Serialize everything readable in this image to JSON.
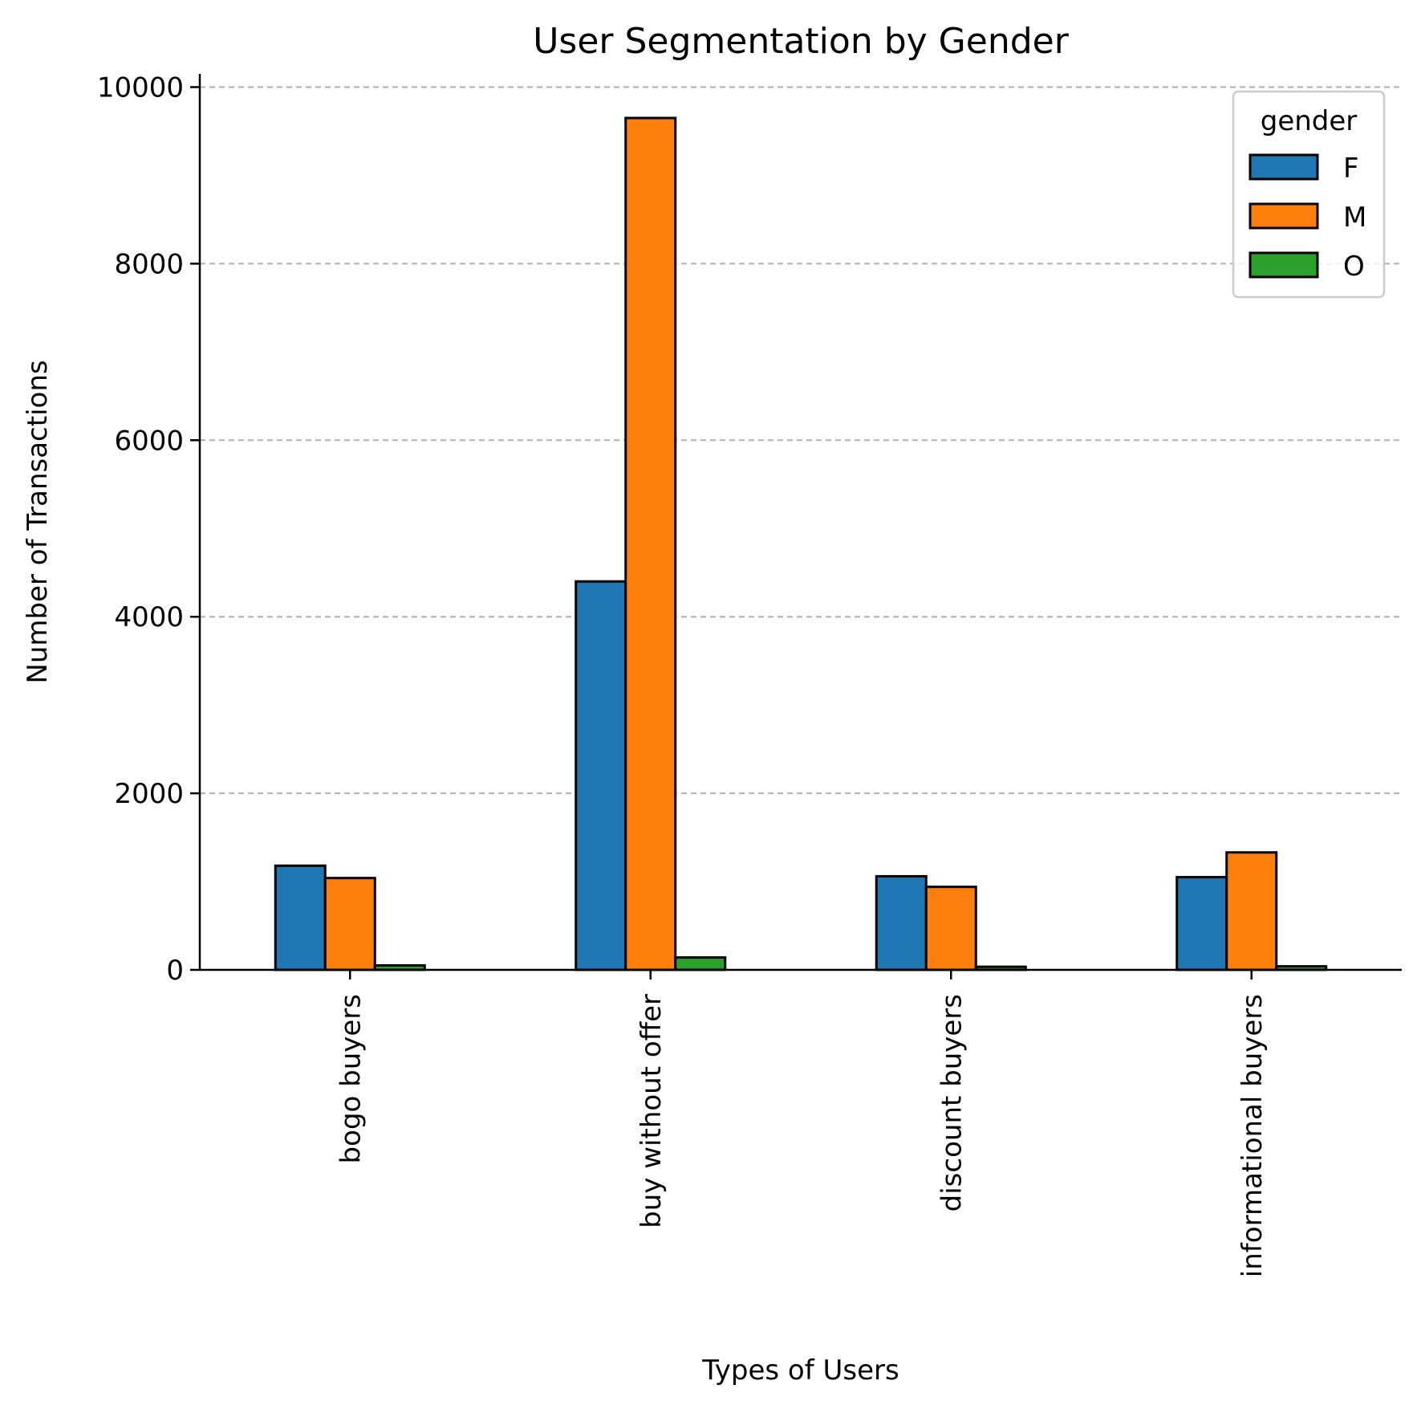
{
  "chart_data": {
    "type": "bar",
    "title": "User Segmentation by Gender",
    "xlabel": "Types of Users",
    "ylabel": "Number of Transactions",
    "categories": [
      "bogo buyers",
      "buy without offer",
      "discount buyers",
      "informational buyers"
    ],
    "series": [
      {
        "name": "F",
        "color": "#1f77b4",
        "values": [
          1180,
          4400,
          1060,
          1050
        ]
      },
      {
        "name": "M",
        "color": "#ff7f0e",
        "values": [
          1040,
          9650,
          940,
          1330
        ]
      },
      {
        "name": "O",
        "color": "#2ca02c",
        "values": [
          50,
          140,
          35,
          40
        ]
      }
    ],
    "ylim": [
      0,
      10150
    ],
    "yticks": [
      0,
      2000,
      4000,
      6000,
      8000,
      10000
    ],
    "grid": "y-dashed",
    "legend": {
      "title": "gender",
      "placement": "top-right"
    },
    "spines": [
      "left",
      "bottom"
    ]
  }
}
